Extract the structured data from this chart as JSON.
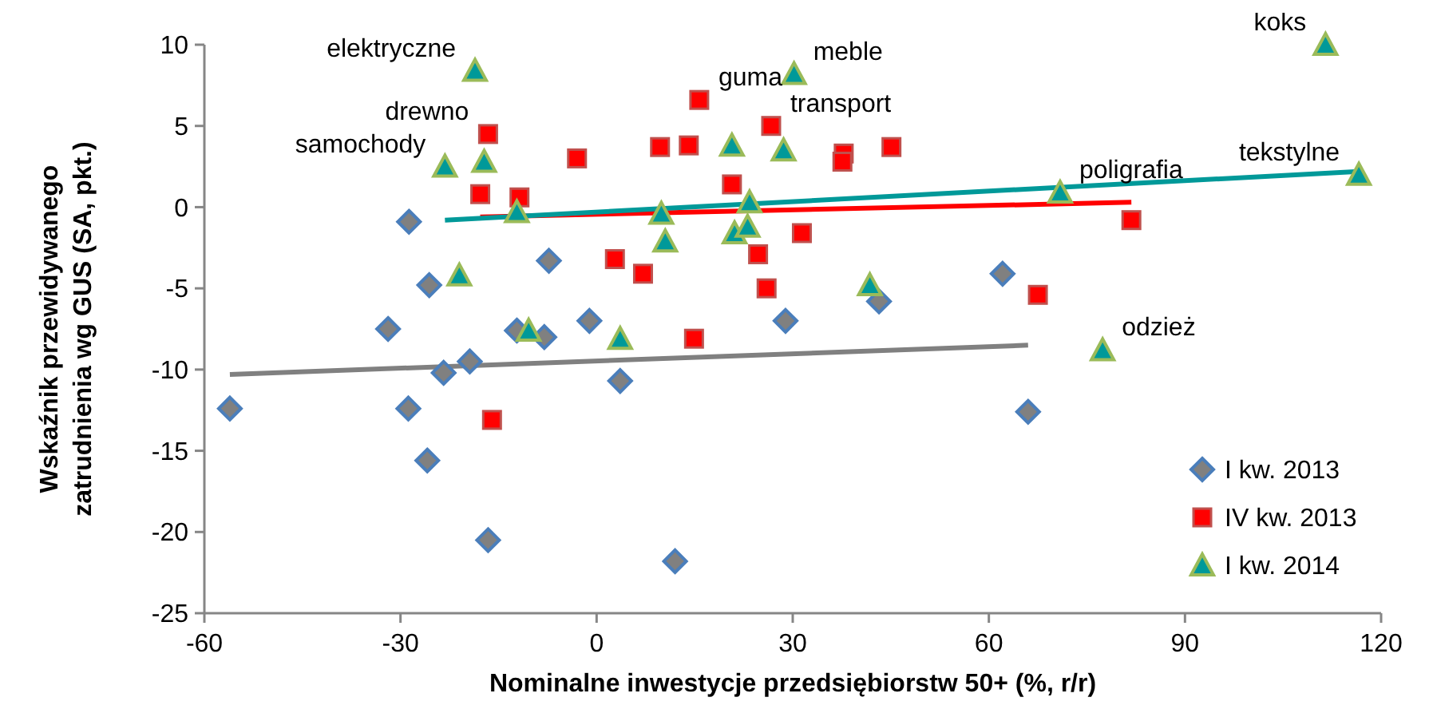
{
  "chart_data": {
    "type": "scatter",
    "xlabel": "Nominalne inwestycje przedsiębiorstw 50+ (%, r/r)",
    "ylabel": "Wskaźnik przewidywanego zatrudnienia wg GUS (SA, pkt.)",
    "xlim": [
      -60,
      120
    ],
    "xticks": [
      -60,
      -30,
      0,
      30,
      60,
      90,
      120
    ],
    "ylim": [
      -25,
      10
    ],
    "yticks": [
      -25,
      -20,
      -15,
      -10,
      -5,
      0,
      5,
      10
    ],
    "grid": false,
    "legend": "bottom right",
    "series": [
      {
        "name": "I kw. 2013",
        "marker": "diamond",
        "color": "#808080",
        "x": [
          -56.1,
          -28.7,
          -25.6,
          -31.9,
          -28.8,
          -23.4,
          -25.9,
          -19.4,
          -16.6,
          -12.2,
          -8.0,
          -1.1,
          3.6,
          -7.3,
          12.0,
          28.9,
          43.2,
          66.0,
          62.1
        ],
        "values": [
          -12.4,
          -0.9,
          -4.8,
          -7.5,
          -12.4,
          -10.2,
          -15.6,
          -9.5,
          -20.5,
          -7.6,
          -8.0,
          -7.0,
          -10.7,
          -3.3,
          -21.8,
          -7.0,
          -5.8,
          -12.6,
          -4.1
        ]
      },
      {
        "name": "IV kw. 2013",
        "marker": "square",
        "color": "#ff0000",
        "x": [
          -16.6,
          -17.8,
          -11.8,
          -3.0,
          2.8,
          7.1,
          -16.0,
          9.7,
          14.1,
          15.7,
          26.7,
          20.7,
          31.4,
          24.7,
          26.0,
          37.8,
          37.6,
          45.1,
          67.5,
          81.8,
          14.9
        ],
        "values": [
          4.5,
          0.8,
          0.6,
          3.0,
          -3.2,
          -4.1,
          -13.1,
          3.7,
          3.8,
          6.6,
          5.0,
          1.4,
          -1.6,
          -2.9,
          -5.0,
          3.3,
          2.8,
          3.7,
          -5.4,
          -0.8,
          -8.1
        ]
      },
      {
        "name": "I kw. 2014",
        "marker": "triangle",
        "color": "#009999",
        "x": [
          -18.6,
          -23.2,
          -17.2,
          -12.2,
          -21.0,
          -10.4,
          3.6,
          30.2,
          20.7,
          28.6,
          9.9,
          10.5,
          23.4,
          21.1,
          23.1,
          41.8,
          70.9,
          111.5,
          116.6,
          77.4
        ],
        "values": [
          8.4,
          2.5,
          2.8,
          -0.3,
          -4.2,
          -7.6,
          -8.1,
          8.2,
          3.8,
          3.5,
          -0.4,
          -2.1,
          0.3,
          -1.6,
          -1.2,
          -4.8,
          0.9,
          10.0,
          2.0,
          -8.8
        ]
      },
      {
        "type": "line",
        "color": "#808080",
        "x": [
          -56.1,
          66.0
        ],
        "values": [
          -10.3,
          -8.5
        ]
      },
      {
        "type": "line",
        "color": "#ff0000",
        "x": [
          -17.8,
          81.8
        ],
        "values": [
          -0.6,
          0.3
        ]
      },
      {
        "type": "line",
        "color": "#009999",
        "x": [
          -23.2,
          116.6
        ],
        "values": [
          -0.8,
          2.2
        ]
      }
    ],
    "annotations": [
      {
        "text": "elektryczne",
        "x": -18.6,
        "y": 8.4
      },
      {
        "text": "drewno",
        "x": -16.6,
        "y": 4.5
      },
      {
        "text": "samochody",
        "x": -23.2,
        "y": 2.5
      },
      {
        "text": "guma",
        "x": 15.7,
        "y": 6.6
      },
      {
        "text": "meble",
        "x": 30.2,
        "y": 8.2
      },
      {
        "text": "transport",
        "x": 26.7,
        "y": 5.0
      },
      {
        "text": "poligrafia",
        "x": 70.9,
        "y": 0.9
      },
      {
        "text": "koks",
        "x": 111.5,
        "y": 10.0
      },
      {
        "text": "tekstylne",
        "x": 116.6,
        "y": 2.0
      },
      {
        "text": "odzież",
        "x": 77.4,
        "y": -8.8
      }
    ]
  }
}
